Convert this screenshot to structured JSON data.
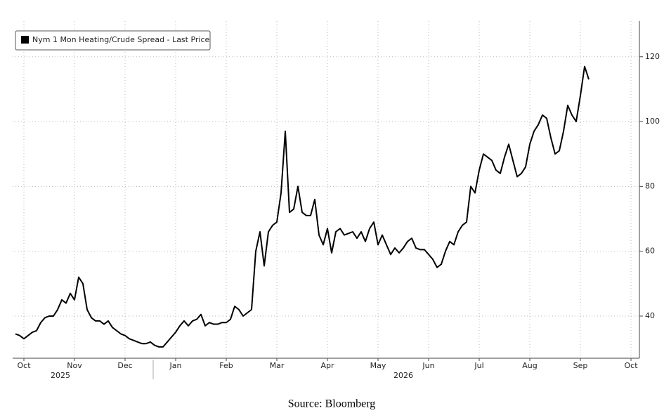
{
  "chart_data": {
    "type": "line",
    "categories": [
      null,
      null,
      "Oct",
      null,
      null,
      null,
      null,
      null,
      null,
      null,
      null,
      null,
      null,
      null,
      "Nov",
      null,
      null,
      null,
      null,
      null,
      null,
      null,
      null,
      null,
      null,
      null,
      "Dec",
      null,
      null,
      null,
      null,
      null,
      null,
      null,
      null,
      null,
      null,
      null,
      "Jan",
      null,
      null,
      null,
      null,
      null,
      null,
      null,
      null,
      null,
      null,
      null,
      "Feb",
      null,
      null,
      null,
      null,
      null,
      null,
      null,
      null,
      null,
      null,
      null,
      "Mar",
      null,
      null,
      null,
      null,
      null,
      null,
      null,
      null,
      null,
      null,
      null,
      "Apr",
      null,
      null,
      null,
      null,
      null,
      null,
      null,
      null,
      null,
      null,
      null,
      "May",
      null,
      null,
      null,
      null,
      null,
      null,
      null,
      null,
      null,
      null,
      null,
      "Jun",
      null,
      null,
      null,
      null,
      null,
      null,
      null,
      null,
      null,
      null,
      null,
      "Jul",
      null,
      null,
      null,
      null,
      null,
      null,
      null,
      null,
      null,
      null,
      null,
      "Aug",
      null,
      null,
      null,
      null,
      null,
      null,
      null,
      null,
      null,
      null,
      null,
      "Sep",
      null,
      null,
      null,
      null,
      null,
      null,
      null,
      null,
      null,
      null,
      null,
      "Oct"
    ],
    "year_labels": [
      "2025",
      "2026"
    ],
    "series": [
      {
        "name": "Nym 1 Mon Heating/Crude Spread - Last Price",
        "color": "#000000",
        "values": [
          34.5,
          34,
          33,
          34,
          35,
          35.5,
          38,
          39.5,
          40,
          40,
          42,
          45,
          44,
          47,
          45,
          52,
          50,
          42,
          39.5,
          38.5,
          38.5,
          37.5,
          38.5,
          36.5,
          35.5,
          34.5,
          34,
          33,
          32.5,
          32,
          31.5,
          31.5,
          32,
          31,
          30.5,
          30.5,
          32,
          33.5,
          35,
          37,
          38.5,
          37,
          38.5,
          39,
          40.5,
          37,
          38,
          37.5,
          37.5,
          38,
          38,
          39,
          43,
          42,
          40,
          41,
          42,
          60,
          66,
          55.5,
          66,
          68,
          69,
          78,
          97,
          72,
          73,
          80,
          72,
          71,
          71,
          76,
          65,
          62,
          67,
          59.5,
          66,
          67,
          65,
          65.5,
          66,
          64,
          66,
          63,
          67,
          69,
          62,
          65,
          62,
          59,
          61,
          59.5,
          61,
          63,
          64,
          61,
          60.5,
          60.5,
          59,
          57.5,
          55,
          56,
          60,
          63,
          62,
          66,
          68,
          69,
          80,
          78,
          85,
          90,
          89,
          88,
          85,
          84,
          89,
          93,
          88,
          83,
          84,
          86,
          93,
          97,
          99,
          102,
          101,
          95,
          90,
          91,
          97,
          105,
          102,
          100,
          108,
          117,
          113,
          null,
          null,
          null,
          null,
          null,
          null,
          null,
          null,
          null,
          null
        ]
      }
    ],
    "ylim": [
      27,
      131
    ],
    "yticks": [
      40,
      60,
      80,
      100,
      120
    ],
    "grid": true,
    "legend": "upper left",
    "source": "Source: Bloomberg"
  }
}
